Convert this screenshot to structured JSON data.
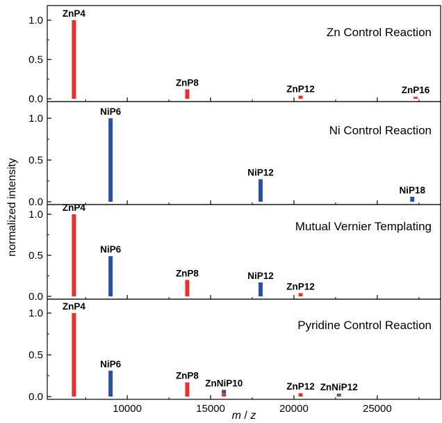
{
  "chart_data": {
    "type": "bar",
    "xlabel_parts": [
      "m",
      " / ",
      "z"
    ],
    "ylabel": "normalized intensity",
    "xlim": [
      5200,
      28800
    ],
    "ylim": [
      0,
      1.08
    ],
    "x_ticks": [
      10000,
      15000,
      20000,
      25000
    ],
    "y_ticks": [
      0.0,
      0.5,
      1.0
    ],
    "y_tick_labels": [
      "0.0",
      "0.5",
      "1.0"
    ],
    "colors": {
      "Zn": "#e8312f",
      "Ni": "#2f4fa0",
      "ZnNi_top": "#2f4fa0",
      "ZnNi_bottom": "#e8312f"
    },
    "panels": [
      {
        "title": "Zn Control Reaction",
        "peaks": [
          {
            "label": "ZnP4",
            "x": 6800,
            "value": 1.0,
            "kind": "Zn"
          },
          {
            "label": "ZnP8",
            "x": 13600,
            "value": 0.12,
            "kind": "Zn"
          },
          {
            "label": "ZnP12",
            "x": 20400,
            "value": 0.04,
            "kind": "Zn"
          },
          {
            "label": "ZnP16",
            "x": 27300,
            "value": 0.025,
            "kind": "Zn"
          }
        ]
      },
      {
        "title": "Ni Control Reaction",
        "peaks": [
          {
            "label": "NiP6",
            "x": 9000,
            "value": 1.0,
            "kind": "Ni"
          },
          {
            "label": "NiP12",
            "x": 18000,
            "value": 0.27,
            "kind": "Ni"
          },
          {
            "label": "NiP18",
            "x": 27100,
            "value": 0.06,
            "kind": "Ni"
          }
        ]
      },
      {
        "title": "Mutual Vernier Templating",
        "peaks": [
          {
            "label": "ZnP4",
            "x": 6800,
            "value": 1.0,
            "kind": "Zn"
          },
          {
            "label": "NiP6",
            "x": 9000,
            "value": 0.49,
            "kind": "Ni"
          },
          {
            "label": "ZnP8",
            "x": 13600,
            "value": 0.2,
            "kind": "Zn"
          },
          {
            "label": "NiP12",
            "x": 18000,
            "value": 0.17,
            "kind": "Ni"
          },
          {
            "label": "ZnP12",
            "x": 20400,
            "value": 0.04,
            "kind": "Zn"
          }
        ]
      },
      {
        "title": "Pyridine Control Reaction",
        "peaks": [
          {
            "label": "ZnP4",
            "x": 6800,
            "value": 1.0,
            "kind": "Zn"
          },
          {
            "label": "NiP6",
            "x": 9000,
            "value": 0.31,
            "kind": "Ni"
          },
          {
            "label": "ZnP8",
            "x": 13600,
            "value": 0.17,
            "kind": "Zn"
          },
          {
            "label": "ZnNiP10",
            "x": 15800,
            "value": 0.08,
            "kind": "ZnNi"
          },
          {
            "label": "ZnP12",
            "x": 20400,
            "value": 0.04,
            "kind": "Zn"
          },
          {
            "label": "ZnNiP12",
            "x": 22700,
            "value": 0.035,
            "kind": "ZnNi"
          }
        ]
      }
    ]
  }
}
